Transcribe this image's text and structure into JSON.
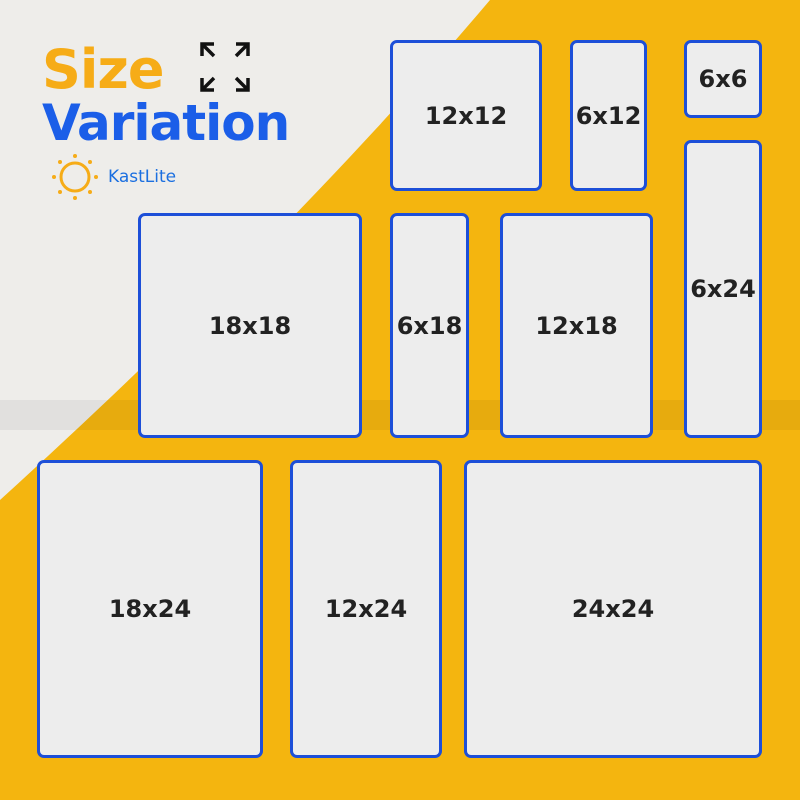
{
  "header": {
    "title_line1": "Size",
    "title_line2": "Variation",
    "brand": "KastLite",
    "expand_icon": "expand-arrows-icon"
  },
  "colors": {
    "yellow": "#f6b80f",
    "blue_border": "#1d4fd8",
    "title_orange": "#f6ac17",
    "title_blue": "#1b5ee8"
  },
  "sizes": [
    "12x12",
    "6x12",
    "6x6",
    "6x24",
    "18x18",
    "6x18",
    "12x18",
    "18x24",
    "12x24",
    "24x24"
  ]
}
